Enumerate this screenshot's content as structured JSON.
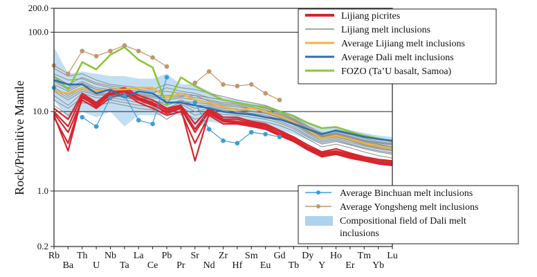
{
  "chart_data": {
    "type": "line",
    "ylabel": "Rock/Primitive Mantle",
    "yscale": "log",
    "ylim": [
      0.2,
      200
    ],
    "y_ticks": [
      "0.2",
      "1.0",
      "10.0",
      "100.0",
      "200.0"
    ],
    "y_tick_values": [
      0.2,
      1,
      10,
      100,
      200
    ],
    "categories": [
      "Rb",
      "Ba",
      "Th",
      "U",
      "Nb",
      "Ta",
      "La",
      "Ce",
      "Pb",
      "Pr",
      "Sr",
      "Nd",
      "Zr",
      "Hf",
      "Sm",
      "Eu",
      "Gd",
      "Tb",
      "Dy",
      "Y",
      "Ho",
      "Er",
      "Tm",
      "Yb",
      "Lu"
    ],
    "grid": "horizontal at major ticks",
    "legend_top": "top-right",
    "legend_bottom": "bottom-right",
    "colors": {
      "picrites": "#d8242c",
      "melt_inclusions": "#8c8c8c",
      "avg_lijiang": "#f0b43c",
      "avg_dali": "#2e6fae",
      "fozo": "#8cc43c",
      "binchuan": "#3a9ed8",
      "yongsheng": "#c0976a",
      "dali_field": "#aed3ee"
    },
    "series": [
      {
        "name": "Lijiang picrites",
        "key": "picrites",
        "lines": [
          [
            9.5,
            5.5,
            14,
            11,
            15,
            17,
            13,
            11,
            9,
            10,
            4,
            9,
            7,
            7,
            6.5,
            6,
            5,
            4.2,
            3.3,
            2.7,
            2.9,
            2.6,
            2.4,
            2.2,
            2.1
          ],
          [
            11,
            8,
            17,
            13,
            18,
            20,
            16,
            14,
            11,
            12,
            7,
            11,
            8.5,
            8.5,
            7.5,
            7,
            5.8,
            4.8,
            3.8,
            3.1,
            3.4,
            3.0,
            2.7,
            2.5,
            2.4
          ],
          [
            8.5,
            4,
            15,
            12,
            16,
            18,
            14,
            12,
            10,
            11,
            5.5,
            10,
            7.8,
            7.5,
            7,
            6.5,
            5.3,
            4.5,
            3.5,
            2.9,
            3.1,
            2.8,
            2.5,
            2.3,
            2.2
          ],
          [
            10,
            6.5,
            16,
            12.5,
            17,
            19,
            15,
            13,
            10.5,
            11.5,
            6,
            10.5,
            8,
            8,
            7.2,
            6.8,
            5.6,
            4.6,
            3.6,
            3.0,
            3.2,
            2.9,
            2.6,
            2.4,
            2.3
          ],
          [
            9,
            3.2,
            15.5,
            11.5,
            16.5,
            18.5,
            14.5,
            12.5,
            9.5,
            11,
            2.4,
            9.5,
            7.5,
            7.2,
            6.8,
            6.2,
            5.1,
            4.3,
            3.4,
            2.8,
            3.0,
            2.7,
            2.45,
            2.25,
            2.15
          ]
        ]
      },
      {
        "name": "Lijiang melt inclusions",
        "key": "melt_inclusions",
        "lines": [
          [
            30,
            25,
            26,
            22,
            20,
            19,
            18,
            17,
            20,
            18,
            17,
            15,
            14,
            13,
            12,
            11,
            9.5,
            8,
            6.2,
            5,
            5.3,
            4.8,
            4.3,
            4,
            3.8
          ],
          [
            22,
            18,
            22,
            19,
            18,
            17,
            16,
            15,
            14,
            15,
            14,
            13,
            12,
            11.5,
            11,
            10,
            8.8,
            7.4,
            5.8,
            4.7,
            5,
            4.5,
            4,
            3.7,
            3.5
          ],
          [
            18,
            14,
            18,
            16,
            16,
            15,
            14,
            13,
            11,
            13,
            11,
            11.5,
            10.5,
            10,
            9.5,
            9,
            8,
            6.8,
            5.3,
            4.3,
            4.6,
            4.1,
            3.7,
            3.4,
            3.2
          ],
          [
            14,
            11,
            15,
            13,
            14,
            13,
            12,
            11.5,
            9,
            11.5,
            9,
            10,
            9.2,
            9,
            8.5,
            8,
            7.2,
            6.1,
            4.8,
            3.9,
            4.2,
            3.8,
            3.4,
            3.1,
            2.9
          ],
          [
            25,
            20,
            24,
            20,
            19,
            18,
            17,
            16,
            16,
            16,
            15,
            14,
            13,
            12.5,
            11.5,
            10.5,
            9.2,
            7.8,
            6,
            4.9,
            5.2,
            4.7,
            4.2,
            3.9,
            3.6
          ],
          [
            35,
            28,
            30,
            25,
            22,
            21,
            20,
            19,
            22,
            20,
            19,
            17,
            15.5,
            14,
            13,
            12,
            10.2,
            8.6,
            6.6,
            5.4,
            5.6,
            5.1,
            4.6,
            4.2,
            4
          ],
          [
            20,
            16,
            20,
            17,
            17,
            16,
            15,
            14,
            12,
            14,
            12,
            12,
            11,
            10.5,
            10,
            9.5,
            8.4,
            7.1,
            5.5,
            4.5,
            4.8,
            4.3,
            3.8,
            3.5,
            3.3
          ],
          [
            16,
            12,
            17,
            15,
            15,
            14,
            13,
            12.5,
            10,
            12.5,
            10,
            11,
            10,
            9.5,
            9,
            8.5,
            7.6,
            6.4,
            5,
            4.1,
            4.4,
            3.9,
            3.5,
            3.2,
            3
          ],
          [
            28,
            22,
            27,
            23,
            21,
            20,
            19,
            18,
            18,
            17,
            16,
            15,
            14,
            13,
            12,
            11,
            9.8,
            8.2,
            6.4,
            5.2,
            5.4,
            4.9,
            4.4,
            4.1,
            3.9
          ],
          [
            12,
            9,
            13,
            12,
            13,
            12,
            11,
            10.5,
            8,
            10.5,
            8,
            9,
            8.5,
            8.2,
            7.8,
            7.4,
            6.7,
            5.7,
            4.5,
            3.6,
            3.9,
            3.5,
            3.1,
            2.8,
            2.6
          ],
          [
            24,
            19,
            23,
            19,
            18.5,
            17.5,
            16.5,
            15.5,
            15,
            15.5,
            16,
            13.5,
            12.5,
            12,
            11,
            10.2,
            9,
            7.6,
            5.9,
            4.8,
            5.1,
            4.6,
            4.1,
            3.8,
            3.6
          ],
          [
            19,
            15,
            19,
            16.5,
            16.5,
            15.5,
            14.5,
            13.5,
            13,
            13.5,
            13,
            12.5,
            11.5,
            10.8,
            10.2,
            9.6,
            8.5,
            7.2,
            5.6,
            4.6,
            4.9,
            4.4,
            3.9,
            3.6,
            3.4
          ]
        ]
      },
      {
        "name": "Average Lijiang melt inclusions",
        "key": "avg_lijiang",
        "lines": [
          [
            18,
            17,
            20,
            18,
            19,
            19,
            20,
            20,
            15,
            17,
            14,
            13,
            11.5,
            10.5,
            11,
            10,
            8.8,
            7.4,
            5.8,
            4.6,
            5,
            4.5,
            4,
            3.7,
            3.4
          ]
        ]
      },
      {
        "name": "Average Dali melt inclusions",
        "key": "avg_dali",
        "lines": [
          [
            25,
            22,
            22,
            17,
            19,
            15,
            18,
            17,
            13,
            13,
            12,
            11,
            10,
            9.5,
            9.2,
            8.5,
            8,
            7,
            6,
            5.2,
            5.8,
            5.3,
            4.8,
            4.5,
            4.3
          ]
        ]
      },
      {
        "name": "FOZO (Ta’U basalt, Samoa)",
        "key": "fozo",
        "lines": [
          [
            28,
            19,
            42,
            34,
            52,
            65,
            45,
            36,
            12,
            27,
            21,
            17,
            14,
            13,
            12,
            11.5,
            10,
            8.8,
            7.2,
            6.2,
            6.4,
            5.6,
            5,
            4.6,
            4.2
          ]
        ]
      },
      {
        "name": "Average Binchuan melt inclusions",
        "key": "binchuan",
        "lines": [
          [
            20,
            null,
            8.5,
            6.5,
            15,
            16,
            7.8,
            7,
            27,
            null,
            13,
            6,
            4.3,
            4,
            5.5,
            5.2,
            4.8,
            null,
            null,
            null,
            null,
            null,
            null,
            null,
            null
          ]
        ]
      },
      {
        "name": "Average Yongsheng melt inclusions",
        "key": "yongsheng",
        "lines": [
          [
            38,
            30,
            58,
            50,
            58,
            68,
            58,
            48,
            37,
            null,
            23,
            32,
            22,
            21,
            22,
            17,
            14,
            null,
            null,
            null,
            null,
            null,
            null,
            null,
            null
          ]
        ]
      }
    ],
    "field": {
      "name": "Compositional field of Dali melt inclusions",
      "key": "dali_field",
      "upper": [
        65,
        30,
        32,
        30,
        28,
        28,
        26,
        26,
        30,
        22,
        22,
        18,
        15,
        14,
        13,
        12,
        10.5,
        9.2,
        7.2,
        6.2,
        6.5,
        5.9,
        5.4,
        5,
        4.8
      ],
      "lower": [
        14,
        8,
        10,
        8.5,
        10,
        6.5,
        9,
        9,
        9,
        9,
        6,
        7.5,
        7,
        6.8,
        6.5,
        6.3,
        5.8,
        5.2,
        4.4,
        3.9,
        4.2,
        3.8,
        3.5,
        3.2,
        3
      ]
    },
    "legend_top_entries": [
      "Lijiang picrites",
      "Lijiang melt inclusions",
      "Average Lijiang melt inclusions",
      "Average Dali melt inclusions",
      "FOZO (Ta’U basalt, Samoa)"
    ],
    "legend_bottom_entries": [
      "Average Binchuan melt inclusions",
      "Average Yongsheng melt inclusions",
      "Compositional field of Dali melt inclusions"
    ]
  }
}
